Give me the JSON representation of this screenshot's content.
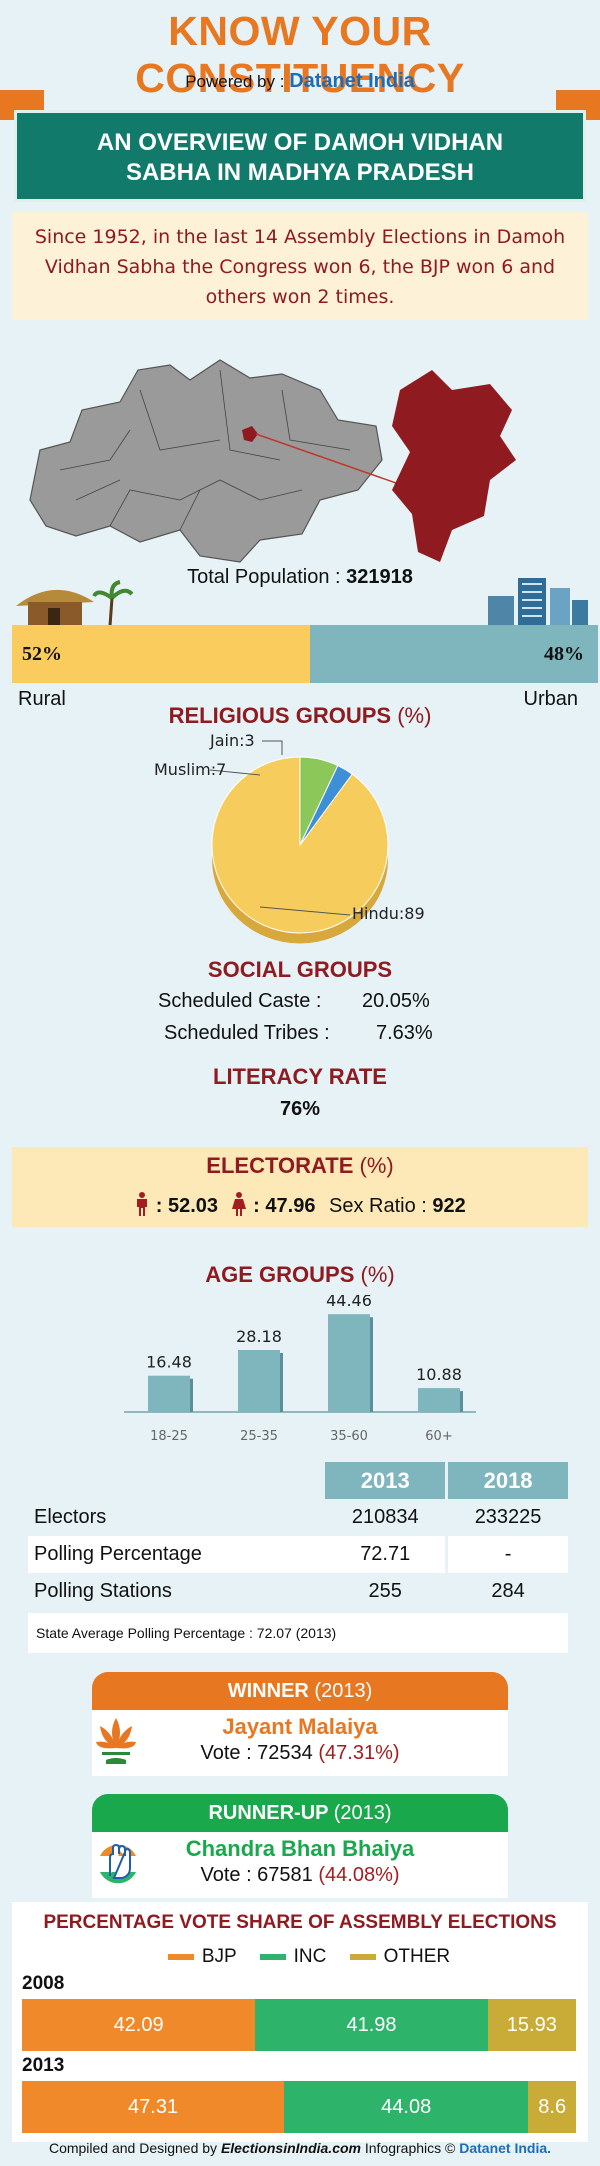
{
  "header": {
    "title": "KNOW YOUR CONSTITUENCY",
    "powered_prefix": "Powered by :",
    "powered_brand": "Datanet India"
  },
  "ribbon": {
    "line1": "AN OVERVIEW OF DAMOH VIDHAN",
    "line2": "SABHA IN MADHYA PRADESH"
  },
  "summary": {
    "text": "Since 1952, in the last 14 Assembly Elections in Damoh Vidhan Sabha the Congress won 6, the BJP won 6 and others won 2 times."
  },
  "population": {
    "label": "Total Population :",
    "value": "321918",
    "rural_pct": "52%",
    "urban_pct": "48%",
    "rural_label": "Rural",
    "urban_label": "Urban"
  },
  "religion": {
    "title": "RELIGIOUS GROUPS",
    "unit": "(%)"
  },
  "social": {
    "title": "SOCIAL GROUPS",
    "sc_label": "Scheduled Caste :",
    "sc_value": "20.05%",
    "st_label": "Scheduled Tribes :",
    "st_value": "7.63%"
  },
  "literacy": {
    "title": "LITERACY RATE",
    "value": "76%"
  },
  "electorate": {
    "title": "ELECTORATE",
    "unit": "(%)",
    "male": ": 52.03",
    "female": ": 47.96",
    "sex_ratio_label": "Sex Ratio :",
    "sex_ratio": "922"
  },
  "age": {
    "title": "AGE GROUPS",
    "unit": "(%)"
  },
  "polling": {
    "years": [
      "2013",
      "2018"
    ],
    "rows": [
      {
        "label": "Electors",
        "v2013": "210834",
        "v2018": "233225"
      },
      {
        "label": "Polling Percentage",
        "v2013": "72.71",
        "v2018": "-"
      },
      {
        "label": "Polling Stations",
        "v2013": "255",
        "v2018": "284"
      }
    ],
    "state_avg": "State Average Polling Percentage : 72.07 (2013)"
  },
  "winner": {
    "title": "WINNER",
    "year": "(2013)",
    "name": "Jayant Malaiya",
    "vote_label": "Vote : 72534",
    "share": "(47.31%)",
    "color": "#e87722"
  },
  "runner_up": {
    "title": "RUNNER-UP",
    "year": "(2013)",
    "name": "Chandra Bhan Bhaiya",
    "vote_label": "Vote : 67581",
    "share": "(44.08%)",
    "color": "#1aa84c"
  },
  "vote_share": {
    "title": "PERCENTAGE VOTE SHARE OF ASSEMBLY ELECTIONS",
    "legend": [
      "BJP",
      "INC",
      "OTHER"
    ]
  },
  "footer": {
    "prefix": "Compiled and Designed by",
    "site": "ElectionsinIndia.com",
    "mid": "Infographics ©",
    "brand": "Datanet India."
  },
  "colors": {
    "bjp": "#f0892a",
    "inc": "#2db36a",
    "other": "#c9ac37",
    "accent": "#8f1b20"
  },
  "icons": [
    "lotus-icon",
    "hand-icon",
    "male-icon",
    "female-icon",
    "hut-icon",
    "buildings-icon"
  ],
  "chart_data": [
    {
      "type": "pie",
      "title": "RELIGIOUS GROUPS (%)",
      "categories": [
        "Hindu",
        "Muslim",
        "Jain"
      ],
      "values": [
        89,
        7,
        3
      ],
      "labels": [
        "Hindu:89",
        "Muslim:7",
        "Jain:3"
      ],
      "colors": [
        "#f6cd5c",
        "#8cc759",
        "#3f8fd6"
      ]
    },
    {
      "type": "bar",
      "title": "AGE GROUPS (%)",
      "categories": [
        "18-25",
        "25-35",
        "35-60",
        "60+"
      ],
      "values": [
        16.48,
        28.18,
        44.46,
        10.88
      ],
      "ylim": [
        0,
        50
      ]
    },
    {
      "type": "bar",
      "title": "PERCENTAGE VOTE SHARE OF ASSEMBLY ELECTIONS",
      "stacked": true,
      "categories": [
        "2008",
        "2013"
      ],
      "series": [
        {
          "name": "BJP",
          "values": [
            42.09,
            47.31
          ]
        },
        {
          "name": "INC",
          "values": [
            41.98,
            44.08
          ]
        },
        {
          "name": "OTHER",
          "values": [
            15.93,
            8.6
          ]
        }
      ]
    }
  ]
}
